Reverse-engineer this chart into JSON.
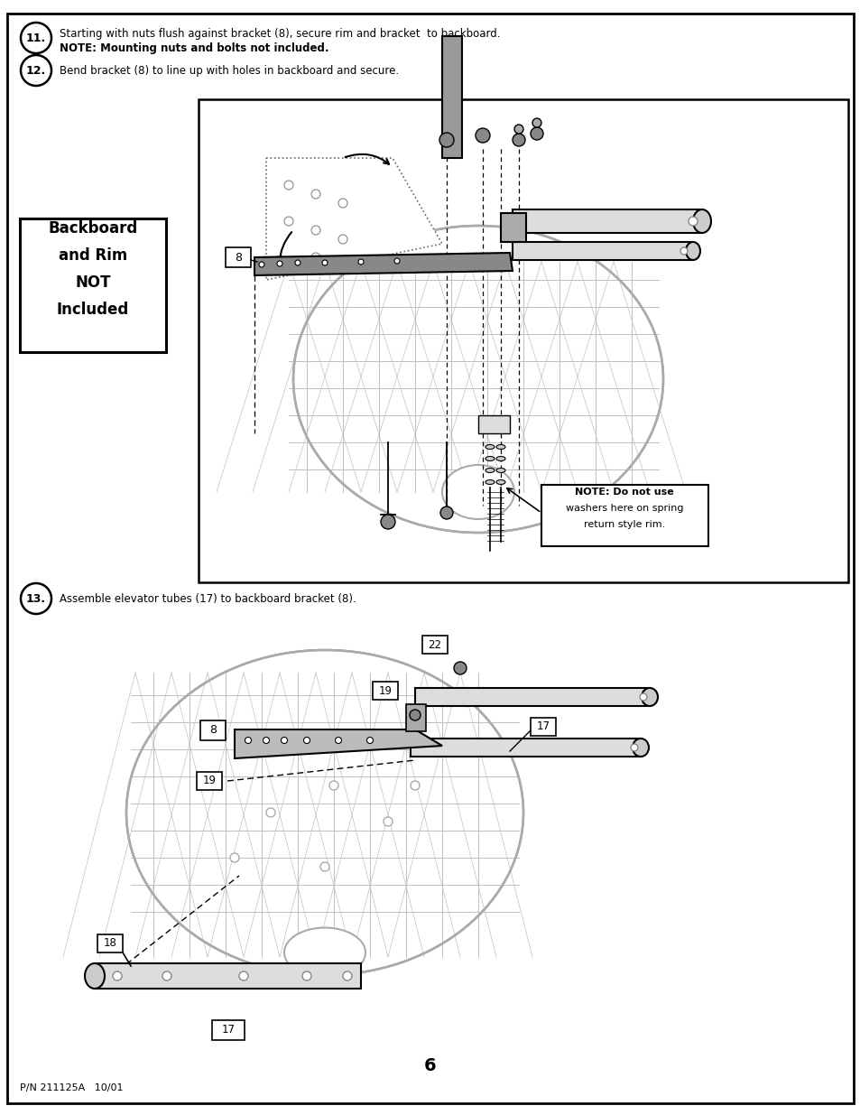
{
  "bg_color": "#ffffff",
  "border_color": "#000000",
  "page_number": "6",
  "footer_left": "P/N 211125A   10/01",
  "step11_text1": "Starting with nuts flush against bracket (8), secure rim and bracket  to backboard.",
  "step11_text2": "NOTE: Mounting nuts and bolts not included.",
  "step12_text": "Bend bracket (8) to line up with holes in backboard and secure.",
  "backboard_box_lines": [
    "Backboard",
    "and Rim",
    "NOT",
    "Included"
  ],
  "note_box_lines": [
    "NOTE: Do not use",
    "washers here on spring",
    "return style rim."
  ],
  "step13_text": "Assemble elevator tubes (17) to backboard bracket (8)."
}
